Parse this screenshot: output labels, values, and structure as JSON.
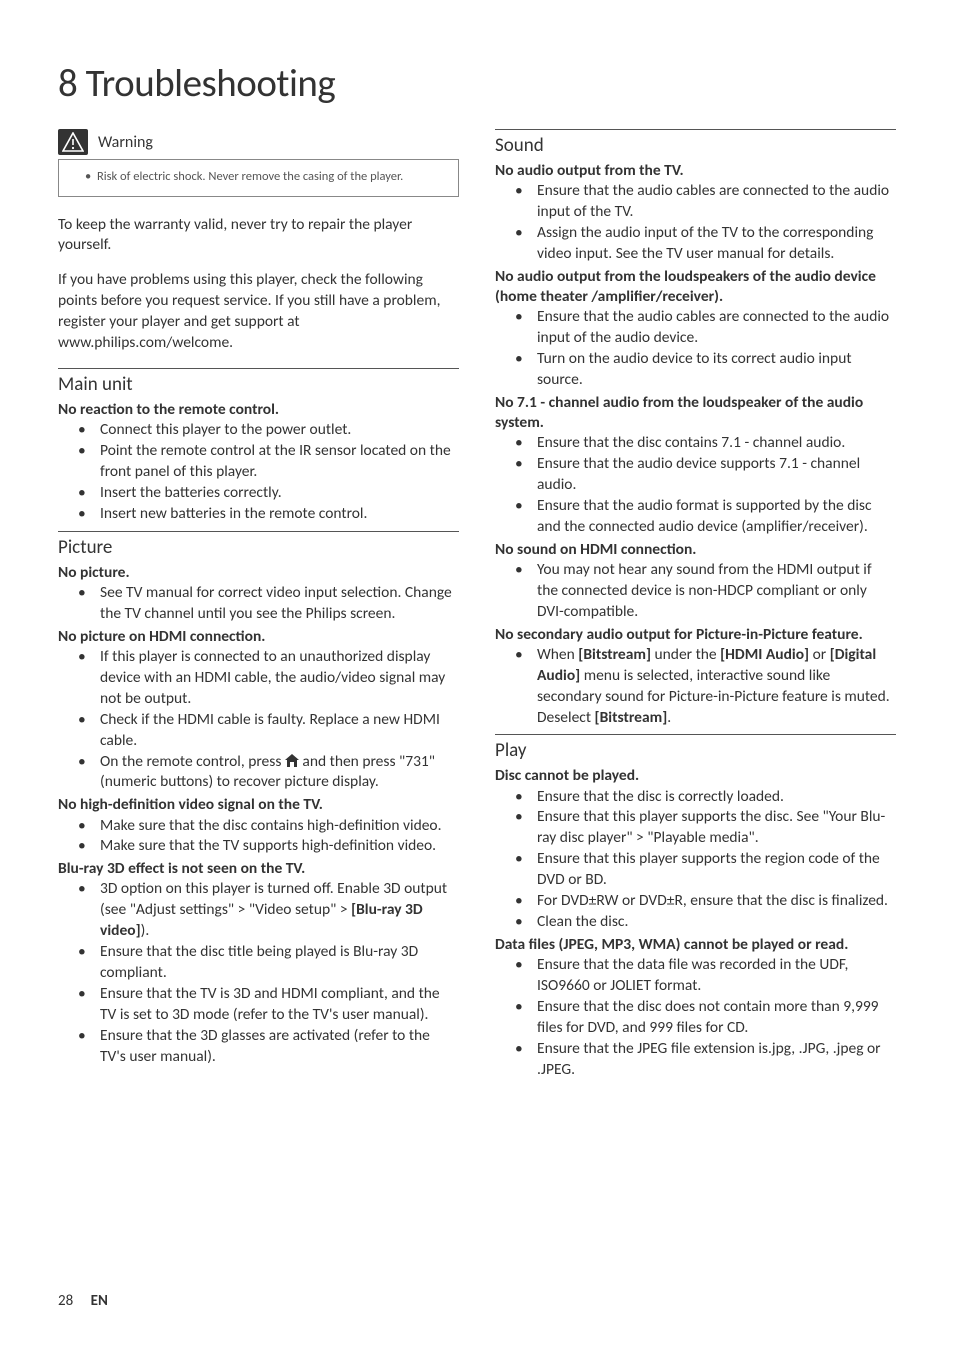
{
  "page_title": "8   Troubleshooting",
  "warning": {
    "label": "Warning",
    "items": [
      "Risk of electric shock. Never remove the casing of the player."
    ]
  },
  "intro_paragraphs": [
    "To keep the warranty valid, never try to repair the player yourself.",
    "If you have problems using this player, check the following points before you request service. If you still have a problem, register your player and get support at www.philips.com/welcome."
  ],
  "left_sections": [
    {
      "title": "Main unit",
      "problems": [
        {
          "heading": "No reaction to the remote control.",
          "bullets": [
            "Connect this player to the power outlet.",
            "Point the remote control at the IR sensor located on the front panel of this player.",
            "Insert the batteries correctly.",
            "Insert new batteries in the remote control."
          ]
        }
      ]
    },
    {
      "title": "Picture",
      "problems": [
        {
          "heading": "No picture.",
          "bullets": [
            "See TV manual for correct video input selection. Change the TV channel until you see the Philips screen."
          ]
        },
        {
          "heading": "No picture on HDMI connection.",
          "bullets": [
            "If this player is connected to an unauthorized display device with an HDMI cable, the audio/video signal may not be output.",
            "Check if the HDMI cable is faulty. Replace a new HDMI cable.",
            {
              "type": "home_731",
              "pre": "On the remote control, press ",
              "post": " and then press \"731\" (numeric buttons) to recover picture display."
            }
          ]
        },
        {
          "heading": "No high-definition video signal on the TV.",
          "bullets": [
            "Make sure that the disc contains high-definition video.",
            "Make sure that the TV supports high-definition video."
          ]
        },
        {
          "heading": "Blu-ray 3D effect is not seen on the TV.",
          "bullets": [
            {
              "type": "bold_seg",
              "segments": [
                {
                  "t": "3D option on this player is turned off. Enable 3D output (see \"Adjust settings\" > \"Video setup\" > "
                },
                {
                  "t": "[Blu-ray 3D video]",
                  "b": true
                },
                {
                  "t": ")."
                }
              ]
            },
            "Ensure that the disc title being played is Blu-ray 3D compliant.",
            "Ensure that the TV is 3D and HDMI compliant, and the TV is set to 3D mode (refer to the TV's user manual).",
            "Ensure that the 3D glasses are activated (refer to the TV's user manual)."
          ]
        }
      ]
    }
  ],
  "right_sections": [
    {
      "title": "Sound",
      "problems": [
        {
          "heading": "No audio output from the TV.",
          "bullets": [
            "Ensure that the audio cables are connected to the audio input of the TV.",
            "Assign the audio input of the TV to the corresponding video input. See the TV user manual for details."
          ]
        },
        {
          "heading": "No audio output from the loudspeakers of the audio device (home theater /amplifier/receiver).",
          "bullets": [
            "Ensure that the audio cables are connected to the audio input of the audio device.",
            "Turn on the audio device to its correct audio input source."
          ]
        },
        {
          "heading": "No 7.1 - channel audio from the loudspeaker of the audio system.",
          "bullets": [
            "Ensure that the disc contains 7.1 - channel audio.",
            "Ensure that the audio device supports 7.1 - channel audio.",
            "Ensure that the audio format is supported by the disc and the connected audio device (amplifier/receiver)."
          ]
        },
        {
          "heading": "No sound on HDMI connection.",
          "bullets": [
            "You may not hear any sound from the HDMI output if the connected device is non-HDCP compliant or only DVI-compatible."
          ]
        },
        {
          "heading": "No secondary audio output for Picture-in-Picture feature.",
          "bullets": [
            {
              "type": "bold_seg",
              "segments": [
                {
                  "t": "When "
                },
                {
                  "t": "[Bitstream]",
                  "b": true
                },
                {
                  "t": " under the "
                },
                {
                  "t": "[HDMI Audio]",
                  "b": true
                },
                {
                  "t": " or "
                },
                {
                  "t": "[Digital Audio]",
                  "b": true
                },
                {
                  "t": " menu is selected, interactive sound like secondary sound for Picture-in-Picture feature is muted. Deselect "
                },
                {
                  "t": "[Bitstream]",
                  "b": true
                },
                {
                  "t": "."
                }
              ]
            }
          ]
        }
      ]
    },
    {
      "title": "Play",
      "problems": [
        {
          "heading": "Disc cannot be played.",
          "bullets": [
            "Ensure that the disc is correctly loaded.",
            "Ensure that this player supports the disc. See \"Your Blu-ray disc player\" > \"Playable media\".",
            "Ensure that this player supports the region code of the DVD or BD.",
            "For DVD±RW or DVD±R, ensure that the disc is finalized.",
            "Clean the disc."
          ]
        },
        {
          "heading": "Data files (JPEG, MP3, WMA) cannot be played or read.",
          "bullets": [
            "Ensure that the data file was recorded in the UDF, ISO9660 or JOLIET format.",
            "Ensure that the disc does not contain more than 9,999 files for DVD, and 999 files for CD.",
            "Ensure that the JPEG file extension is.jpg, .JPG, .jpeg or .JPEG."
          ]
        }
      ]
    }
  ],
  "footer": {
    "page": "28",
    "lang": "EN"
  }
}
